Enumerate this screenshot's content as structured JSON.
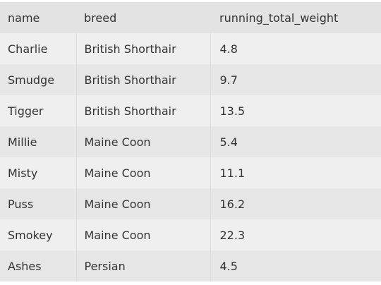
{
  "table": {
    "columns": [
      "name",
      "breed",
      "running_total_weight"
    ],
    "rows": [
      [
        "Charlie",
        "British Shorthair",
        "4.8"
      ],
      [
        "Smudge",
        "British Shorthair",
        "9.7"
      ],
      [
        "Tigger",
        "British Shorthair",
        "13.5"
      ],
      [
        "Millie",
        "Maine Coon",
        "5.4"
      ],
      [
        "Misty",
        "Maine Coon",
        "11.1"
      ],
      [
        "Puss",
        "Maine Coon",
        "16.2"
      ],
      [
        "Smokey",
        "Maine Coon",
        "22.3"
      ],
      [
        "Ashes",
        "Persian",
        "4.5"
      ]
    ]
  }
}
